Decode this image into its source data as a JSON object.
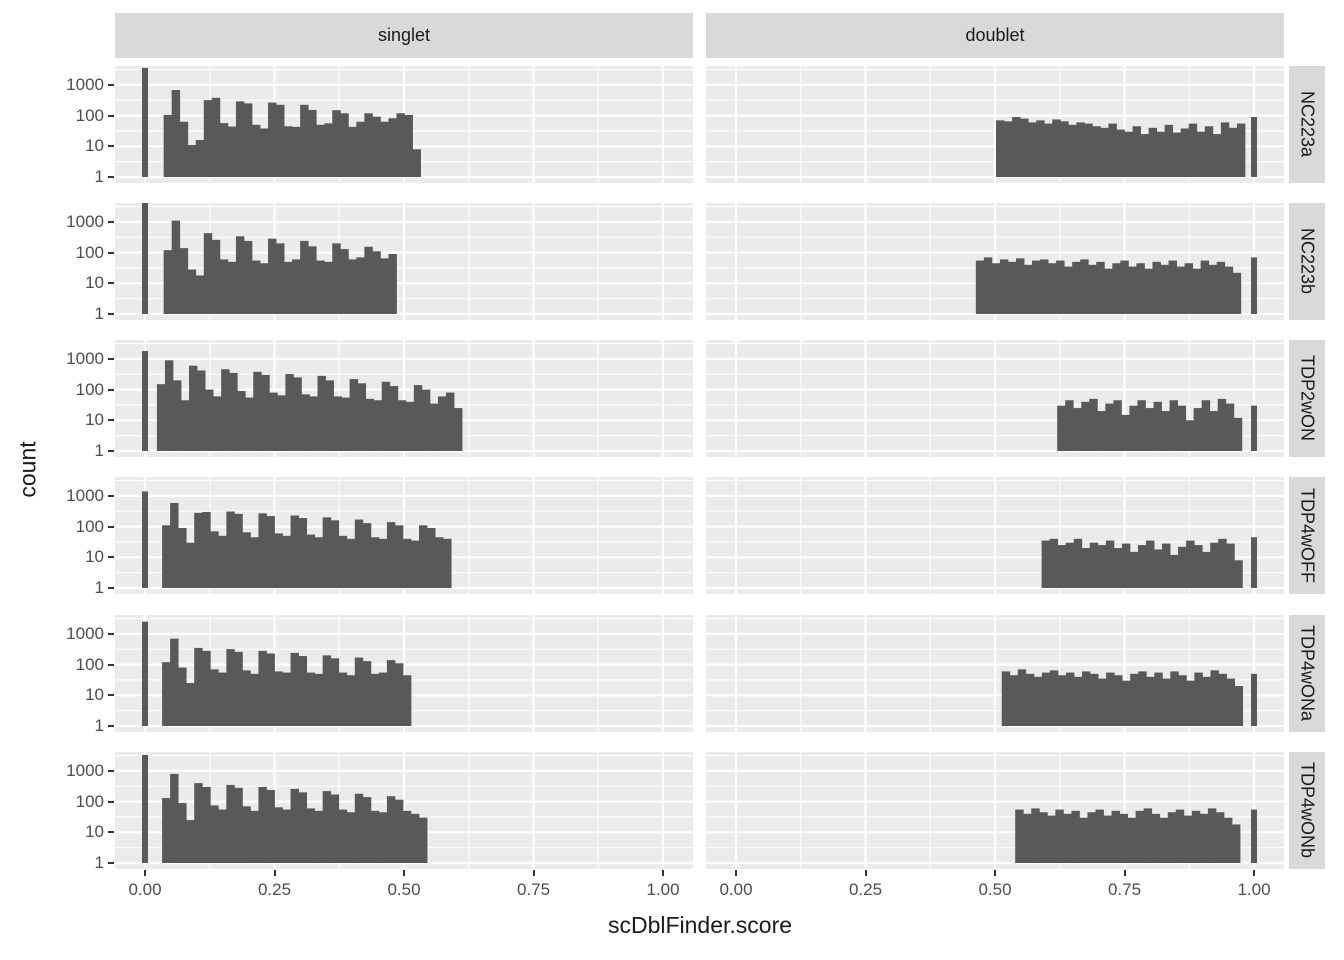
{
  "chart_data": {
    "type": "bar",
    "subtype": "faceted-histogram",
    "title": "",
    "xlabel": "scDblFinder.score",
    "ylabel": "count",
    "x_tick_labels": [
      "0.00",
      "0.25",
      "0.50",
      "0.75",
      "1.00"
    ],
    "x_tick_values": [
      0,
      0.25,
      0.5,
      0.75,
      1.0
    ],
    "y_tick_labels": [
      "1000",
      "100",
      "10",
      "1"
    ],
    "y_tick_values": [
      1000,
      100,
      10,
      1
    ],
    "y_scale": "log10",
    "xlim": [
      -0.058,
      1.058
    ],
    "ylim_log10": [
      -0.2,
      3.62
    ],
    "grid": "on",
    "legend_position": "none",
    "col_facets": [
      "singlet",
      "doublet"
    ],
    "row_facets": [
      "NC223a",
      "NC223b",
      "TDP2wON",
      "TDP4wOFF",
      "TDP4wONa",
      "TDP4wONb"
    ],
    "colors": {
      "bar": "#595959",
      "panel_bg": "#EBEBEB",
      "strip_bg": "#D9D9D9",
      "grid_line": "#FFFFFF",
      "tick_text": "#4D4D4D",
      "title_text": "#1A1A1A",
      "tick_mark": "#333333"
    },
    "binwidth": 0.0155,
    "panels": [
      {
        "row": "NC223a",
        "col": "singlet",
        "bin_start": 0.036,
        "spike": {
          "x": 0.0,
          "count": 3600
        },
        "counts": [
          105,
          680,
          63,
          11,
          16,
          320,
          380,
          57,
          44,
          290,
          250,
          50,
          38,
          265,
          225,
          45,
          43,
          225,
          153,
          50,
          56,
          150,
          119,
          43,
          63,
          119,
          92,
          63,
          82,
          119,
          105,
          8
        ]
      },
      {
        "row": "NC223a",
        "col": "doublet",
        "bin_start": 0.502,
        "spike": {
          "x": 1.0,
          "count": 90
        },
        "counts": [
          70,
          65,
          90,
          80,
          60,
          70,
          55,
          75,
          65,
          50,
          60,
          55,
          45,
          40,
          55,
          35,
          30,
          45,
          25,
          40,
          30,
          50,
          28,
          38,
          55,
          30,
          45,
          25,
          60,
          40,
          55
        ]
      },
      {
        "row": "NC223b",
        "col": "singlet",
        "bin_start": 0.036,
        "spike": {
          "x": 0.0,
          "count": 4500
        },
        "counts": [
          120,
          1100,
          140,
          28,
          18,
          430,
          260,
          60,
          50,
          340,
          240,
          55,
          45,
          285,
          200,
          50,
          60,
          240,
          160,
          55,
          50,
          200,
          130,
          60,
          70,
          155,
          110,
          65,
          90
        ]
      },
      {
        "row": "NC223b",
        "col": "doublet",
        "bin_start": 0.463,
        "spike": {
          "x": 1.0,
          "count": 70
        },
        "counts": [
          55,
          70,
          45,
          60,
          50,
          65,
          40,
          55,
          60,
          45,
          55,
          35,
          50,
          60,
          40,
          50,
          30,
          45,
          55,
          35,
          45,
          30,
          50,
          40,
          55,
          35,
          45,
          30,
          55,
          40,
          50,
          35,
          22
        ]
      },
      {
        "row": "TDP2wON",
        "col": "singlet",
        "bin_start": 0.023,
        "spike": {
          "x": 0.0,
          "count": 1800
        },
        "counts": [
          150,
          900,
          200,
          45,
          600,
          420,
          100,
          60,
          460,
          350,
          90,
          55,
          380,
          300,
          80,
          65,
          320,
          250,
          70,
          60,
          280,
          200,
          60,
          55,
          220,
          160,
          50,
          45,
          180,
          130,
          45,
          40,
          140,
          100,
          35,
          60,
          80,
          25
        ]
      },
      {
        "row": "TDP2wON",
        "col": "doublet",
        "bin_start": 0.62,
        "spike": {
          "x": 1.0,
          "count": 30
        },
        "counts": [
          30,
          45,
          25,
          40,
          50,
          20,
          35,
          45,
          15,
          30,
          45,
          25,
          40,
          20,
          45,
          30,
          10,
          25,
          45,
          20,
          50,
          35,
          12
        ]
      },
      {
        "row": "TDP4wOFF",
        "col": "singlet",
        "bin_start": 0.033,
        "spike": {
          "x": 0.0,
          "count": 1400
        },
        "counts": [
          110,
          590,
          90,
          30,
          280,
          300,
          70,
          50,
          310,
          260,
          65,
          45,
          270,
          220,
          60,
          50,
          230,
          190,
          55,
          45,
          200,
          160,
          50,
          40,
          170,
          130,
          45,
          40,
          140,
          110,
          40,
          35,
          110,
          90,
          45,
          40
        ]
      },
      {
        "row": "TDP4wOFF",
        "col": "doublet",
        "bin_start": 0.59,
        "spike": {
          "x": 1.0,
          "count": 45
        },
        "counts": [
          35,
          40,
          25,
          30,
          40,
          20,
          30,
          25,
          35,
          20,
          28,
          15,
          25,
          35,
          18,
          28,
          12,
          22,
          35,
          25,
          15,
          30,
          40,
          28,
          8
        ]
      },
      {
        "row": "TDP4wONa",
        "col": "singlet",
        "bin_start": 0.033,
        "spike": {
          "x": 0.0,
          "count": 2500
        },
        "counts": [
          120,
          700,
          80,
          25,
          350,
          280,
          70,
          55,
          320,
          260,
          65,
          50,
          280,
          230,
          60,
          55,
          240,
          190,
          55,
          50,
          200,
          160,
          55,
          45,
          170,
          130,
          50,
          55,
          140,
          110,
          45
        ]
      },
      {
        "row": "TDP4wONa",
        "col": "doublet",
        "bin_start": 0.513,
        "spike": {
          "x": 1.0,
          "count": 50
        },
        "counts": [
          60,
          45,
          70,
          50,
          40,
          55,
          65,
          45,
          55,
          40,
          60,
          50,
          35,
          55,
          45,
          30,
          50,
          60,
          40,
          55,
          35,
          60,
          45,
          30,
          55,
          40,
          65,
          50,
          35,
          20
        ]
      },
      {
        "row": "TDP4wONb",
        "col": "singlet",
        "bin_start": 0.033,
        "spike": {
          "x": 0.0,
          "count": 3300
        },
        "counts": [
          130,
          800,
          90,
          25,
          400,
          300,
          75,
          55,
          350,
          280,
          70,
          50,
          300,
          240,
          65,
          55,
          260,
          200,
          60,
          50,
          220,
          170,
          55,
          45,
          180,
          140,
          50,
          45,
          150,
          115,
          50,
          40,
          30
        ]
      },
      {
        "row": "TDP4wONb",
        "col": "doublet",
        "bin_start": 0.539,
        "spike": {
          "x": 1.0,
          "count": 55
        },
        "counts": [
          55,
          40,
          60,
          45,
          35,
          55,
          40,
          50,
          30,
          45,
          55,
          35,
          50,
          40,
          30,
          50,
          60,
          40,
          30,
          45,
          55,
          35,
          50,
          40,
          60,
          45,
          30,
          18
        ]
      }
    ]
  }
}
